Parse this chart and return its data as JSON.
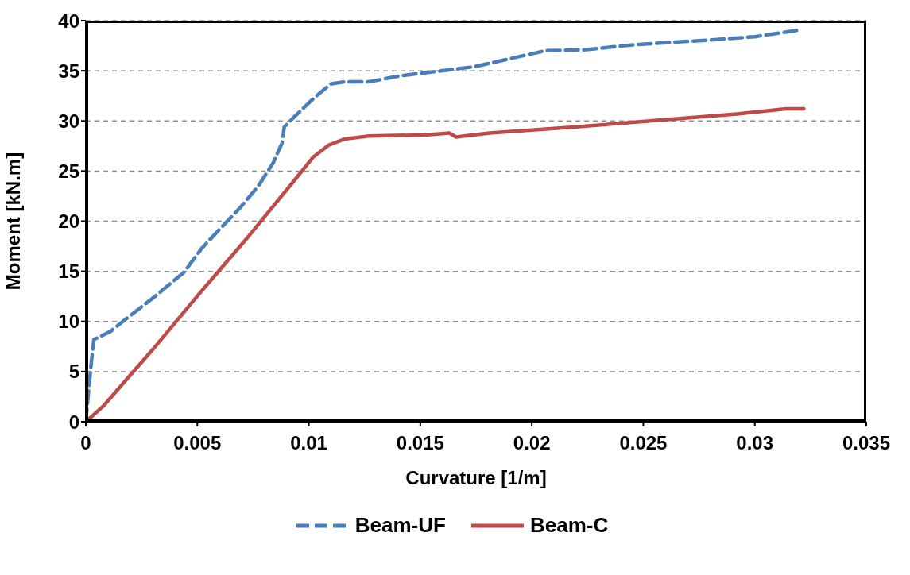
{
  "chart_data": {
    "type": "line",
    "xlabel": "Curvature [1/m]",
    "ylabel": "Moment [kN.m]",
    "xlim": [
      0,
      0.035
    ],
    "xticks": [
      0,
      0.005,
      0.01,
      0.015,
      0.02,
      0.025,
      0.03,
      0.035
    ],
    "ylim": [
      0,
      40
    ],
    "yticks": [
      0,
      5,
      10,
      15,
      20,
      25,
      30,
      35,
      40
    ],
    "grid": "y",
    "legend": "bottom",
    "marker": "none",
    "series": [
      {
        "name": "Beam-UF",
        "color": "#4a7ebb",
        "line_style": "dashed",
        "x": [
          0,
          0.0001,
          0.00025,
          0.00036,
          0.0011,
          0.002,
          0.0031,
          0.0044,
          0.0052,
          0.006,
          0.0069,
          0.0077,
          0.0084,
          0.0088,
          0.0089,
          0.0093,
          0.01,
          0.0105,
          0.011,
          0.0116,
          0.0127,
          0.0141,
          0.0156,
          0.0174,
          0.0188,
          0.0206,
          0.0224,
          0.0246,
          0.0282,
          0.03,
          0.0321
        ],
        "values": [
          0,
          2.5,
          6,
          8.2,
          9,
          10.6,
          12.5,
          14.9,
          17.3,
          19.2,
          21.3,
          23.4,
          25.8,
          27.8,
          29.4,
          30.3,
          31.8,
          32.8,
          33.7,
          33.9,
          33.9,
          34.5,
          34.9,
          35.4,
          36.1,
          37,
          37.1,
          37.6,
          38.1,
          38.4,
          39.1
        ]
      },
      {
        "name": "Beam-C",
        "color": "#be4b48",
        "line_style": "solid",
        "x": [
          0,
          0.0008,
          0.003,
          0.0051,
          0.0073,
          0.0094,
          0.0102,
          0.0109,
          0.0116,
          0.0127,
          0.0152,
          0.0163,
          0.0166,
          0.0181,
          0.022,
          0.0231,
          0.0264,
          0.0292,
          0.0314,
          0.0322
        ],
        "values": [
          0,
          1.6,
          7.2,
          12.8,
          18.5,
          24.2,
          26.4,
          27.6,
          28.2,
          28.5,
          28.6,
          28.8,
          28.4,
          28.8,
          29.4,
          29.6,
          30.2,
          30.7,
          31.2,
          31.2
        ]
      }
    ]
  }
}
